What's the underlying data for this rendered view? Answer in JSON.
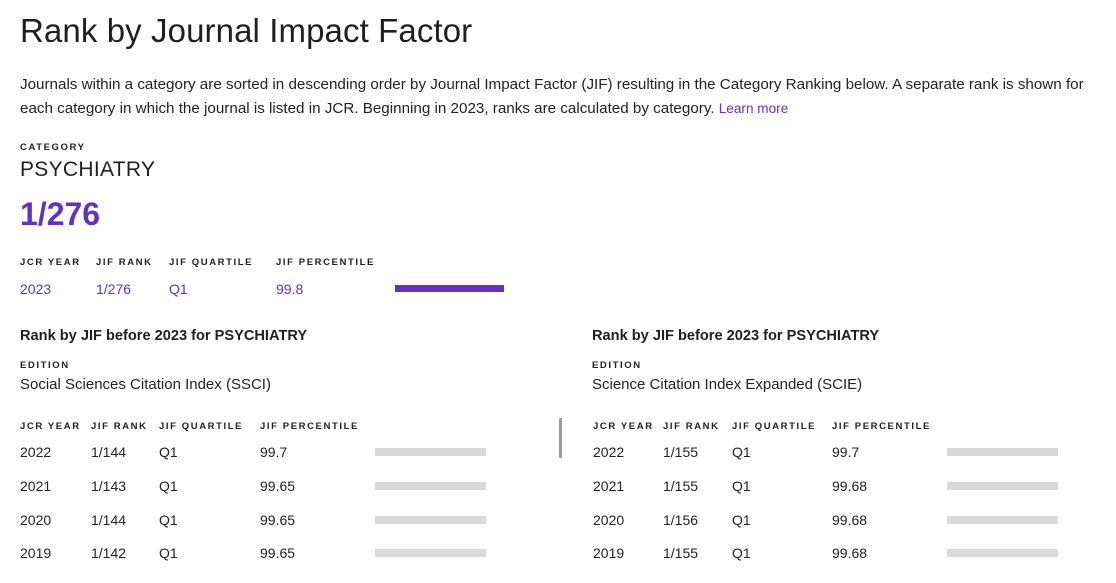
{
  "page": {
    "title": "Rank by Journal Impact Factor",
    "intro_text": "Journals within a category are sorted in descending order by Journal Impact Factor (JIF) resulting in the Category Ranking below. A separate rank is shown for each category in which the journal is listed in JCR. Beginning in 2023, ranks are calculated by category.",
    "learn_more": "Learn more"
  },
  "category": {
    "label": "CATEGORY",
    "name": "PSYCHIATRY",
    "rank": "1/276"
  },
  "current": {
    "headers": {
      "year": "JCR YEAR",
      "rank": "JIF RANK",
      "quartile": "JIF QUARTILE",
      "percentile": "JIF PERCENTILE"
    },
    "row": {
      "year": "2023",
      "rank": "1/276",
      "quartile": "Q1",
      "percentile": "99.8",
      "percentile_value": 99.8
    },
    "bar_color": "#5e33bf"
  },
  "editions": [
    {
      "title": "Rank by JIF before 2023 for PSYCHIATRY",
      "edition_label": "EDITION",
      "edition_name": "Social Sciences Citation Index (SSCI)",
      "headers": {
        "year": "JCR YEAR",
        "rank": "JIF RANK",
        "quartile": "JIF QUARTILE",
        "percentile": "JIF PERCENTILE"
      },
      "rows": [
        {
          "year": "2022",
          "rank": "1/144",
          "quartile": "Q1",
          "percentile": "99.7"
        },
        {
          "year": "2021",
          "rank": "1/143",
          "quartile": "Q1",
          "percentile": "99.65"
        },
        {
          "year": "2020",
          "rank": "1/144",
          "quartile": "Q1",
          "percentile": "99.65"
        },
        {
          "year": "2019",
          "rank": "1/142",
          "quartile": "Q1",
          "percentile": "99.65"
        }
      ]
    },
    {
      "title": "Rank by JIF before 2023 for PSYCHIATRY",
      "edition_label": "EDITION",
      "edition_name": "Science Citation Index Expanded (SCIE)",
      "headers": {
        "year": "JCR YEAR",
        "rank": "JIF RANK",
        "quartile": "JIF QUARTILE",
        "percentile": "JIF PERCENTILE"
      },
      "rows": [
        {
          "year": "2022",
          "rank": "1/155",
          "quartile": "Q1",
          "percentile": "99.7"
        },
        {
          "year": "2021",
          "rank": "1/155",
          "quartile": "Q1",
          "percentile": "99.68"
        },
        {
          "year": "2020",
          "rank": "1/156",
          "quartile": "Q1",
          "percentile": "99.68"
        },
        {
          "year": "2019",
          "rank": "1/155",
          "quartile": "Q1",
          "percentile": "99.68"
        }
      ]
    }
  ],
  "colors": {
    "accent": "#5e33bf",
    "bar_gray": "#d9d9d9"
  }
}
